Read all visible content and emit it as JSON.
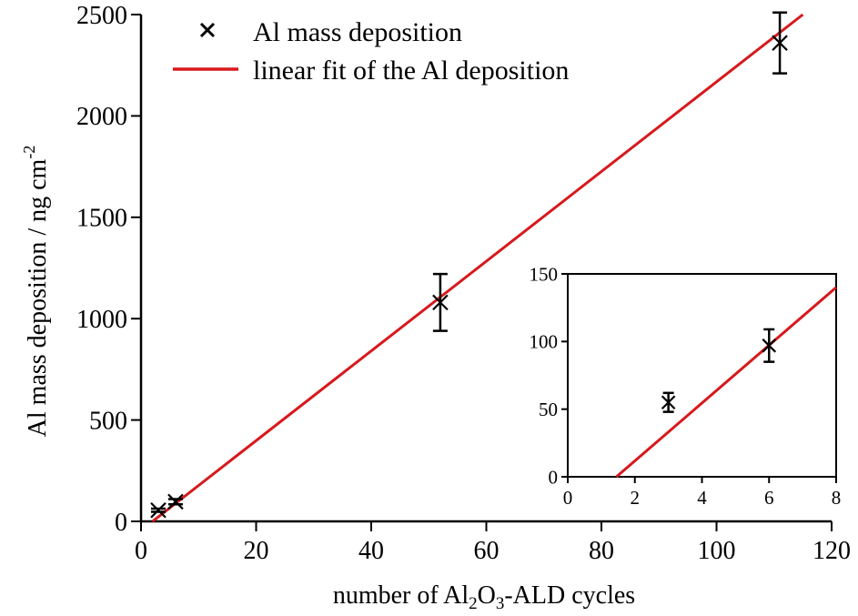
{
  "chart_data": [
    {
      "type": "scatter",
      "xlabel_parts": [
        "number of Al",
        "2",
        "O",
        "3",
        "-ALD cycles"
      ],
      "ylabel": "Al mass deposition / ng cm",
      "ylabel_sup": "-2",
      "xlim": [
        0,
        120
      ],
      "ylim": [
        0,
        2500
      ],
      "x_ticks": [
        0,
        20,
        40,
        60,
        80,
        100,
        120
      ],
      "y_ticks": [
        0,
        500,
        1000,
        1500,
        2000,
        2500
      ],
      "grid": false,
      "legend_position": "top-left",
      "legend": [
        {
          "label": "Al mass deposition",
          "marker": "x",
          "color": "#000000"
        },
        {
          "label": "linear fit of the Al deposition",
          "marker": "line",
          "color": "#d7191c"
        }
      ],
      "series": [
        {
          "name": "Al mass deposition",
          "kind": "scatter-errorbar",
          "color": "#000000",
          "points": [
            {
              "x": 3,
              "y": 55,
              "err": 8
            },
            {
              "x": 6,
              "y": 97,
              "err": 13
            },
            {
              "x": 52,
              "y": 1080,
              "err": 140
            },
            {
              "x": 111,
              "y": 2360,
              "err": 150
            }
          ]
        },
        {
          "name": "linear fit of the Al deposition",
          "kind": "line",
          "color": "#d7191c",
          "x": [
            2,
            115
          ],
          "y": [
            0,
            2500
          ]
        }
      ]
    },
    {
      "type": "scatter",
      "inset": true,
      "xlim": [
        0,
        8
      ],
      "ylim": [
        0,
        150
      ],
      "x_ticks": [
        0,
        2,
        4,
        6,
        8
      ],
      "y_ticks": [
        0,
        50,
        100,
        150
      ],
      "grid": false,
      "series": [
        {
          "kind": "scatter-errorbar",
          "color": "#000000",
          "points": [
            {
              "x": 3,
              "y": 55,
              "err": 7
            },
            {
              "x": 6,
              "y": 97,
              "err": 12
            }
          ]
        },
        {
          "kind": "line",
          "color": "#d7191c",
          "x": [
            1.45,
            8
          ],
          "y": [
            0,
            140
          ]
        }
      ]
    }
  ]
}
